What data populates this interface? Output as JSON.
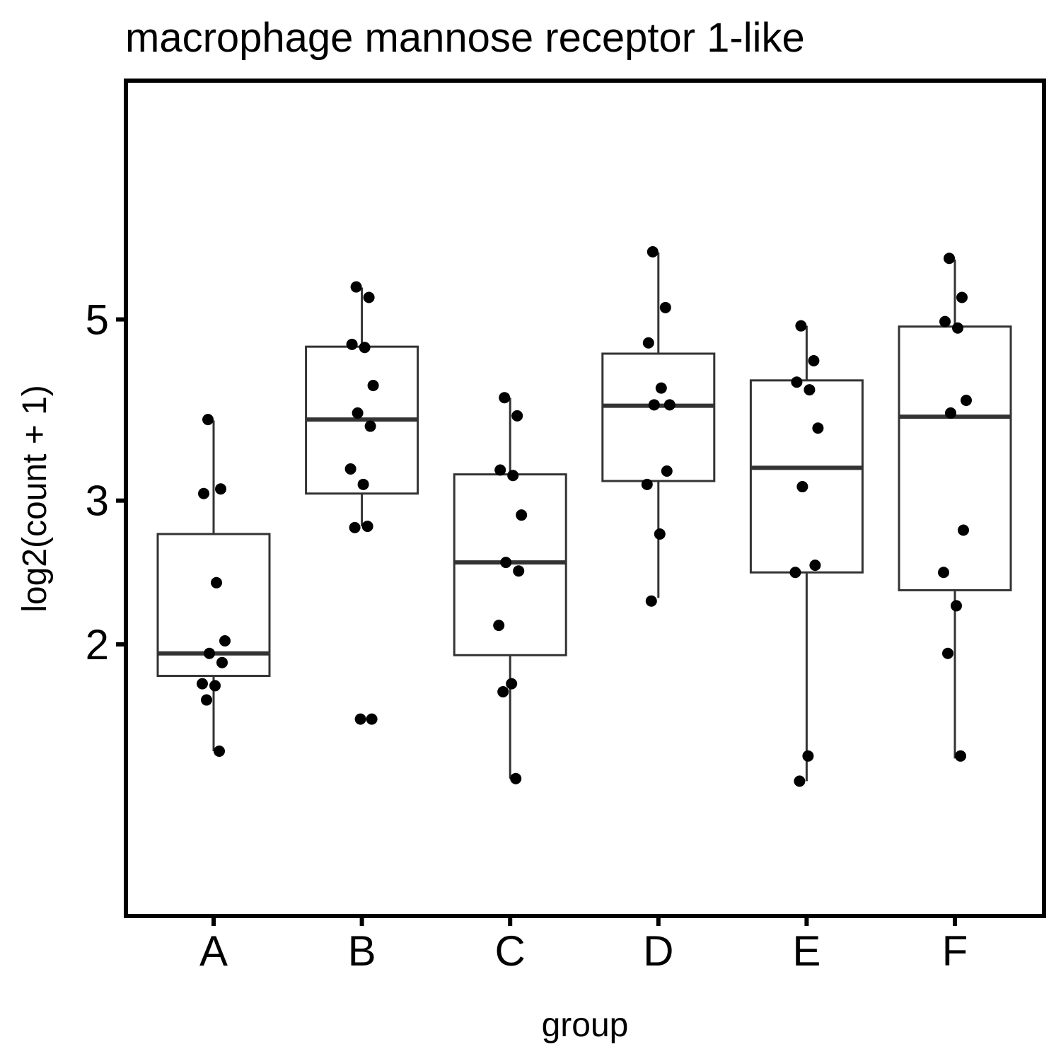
{
  "chart_data": {
    "type": "box",
    "title": "macrophage mannose receptor 1-like",
    "xlabel": "group",
    "ylabel": "log2(count + 1)",
    "y_scale": "log",
    "ylim": [
      1.27,
      6.4
    ],
    "y_ticks": [
      2,
      3,
      5
    ],
    "y_tick_labels": [
      "2",
      "3",
      "5"
    ],
    "categories": [
      "A",
      "B",
      "C",
      "D",
      "E",
      "F"
    ],
    "grid": false,
    "legend": "none",
    "colors": {
      "box_stroke": "#333333",
      "point": "#000000",
      "axis": "#000000"
    },
    "boxes": [
      {
        "group": "A",
        "whisker_low": 1.48,
        "q1": 1.83,
        "median": 1.95,
        "q3": 2.73,
        "whisker_high": 3.76
      },
      {
        "group": "B",
        "whisker_low": 2.79,
        "q1": 3.06,
        "median": 3.77,
        "q3": 4.63,
        "whisker_high": 5.47
      },
      {
        "group": "C",
        "whisker_low": 1.37,
        "q1": 1.94,
        "median": 2.52,
        "q3": 3.23,
        "whisker_high": 4.01
      },
      {
        "group": "D",
        "whisker_low": 2.28,
        "q1": 3.17,
        "median": 3.92,
        "q3": 4.54,
        "whisker_high": 6.04
      },
      {
        "group": "E",
        "whisker_low": 1.36,
        "q1": 2.45,
        "median": 3.29,
        "q3": 4.21,
        "whisker_high": 4.91
      },
      {
        "group": "F",
        "whisker_low": 1.45,
        "q1": 2.33,
        "median": 3.8,
        "q3": 4.9,
        "whisker_high": 5.92
      }
    ],
    "points": [
      {
        "group": "A",
        "y": [
          3.77,
          3.1,
          3.06,
          2.38,
          2.02,
          1.95,
          1.9,
          1.79,
          1.78,
          1.71,
          1.48
        ]
      },
      {
        "group": "B",
        "y": [
          5.48,
          5.32,
          4.66,
          4.62,
          4.15,
          3.84,
          3.7,
          3.28,
          3.14,
          2.78,
          2.79,
          1.62,
          1.62
        ]
      },
      {
        "group": "C",
        "y": [
          4.01,
          3.81,
          3.27,
          3.22,
          2.88,
          2.52,
          2.46,
          2.11,
          1.79,
          1.75,
          1.37
        ]
      },
      {
        "group": "D",
        "y": [
          6.05,
          5.17,
          4.68,
          4.12,
          3.93,
          3.93,
          3.26,
          3.14,
          2.73,
          2.26
        ]
      },
      {
        "group": "E",
        "y": [
          4.91,
          4.45,
          4.19,
          4.1,
          3.68,
          3.12,
          2.5,
          2.45,
          1.46,
          1.36
        ]
      },
      {
        "group": "F",
        "y": [
          5.94,
          5.32,
          4.97,
          4.88,
          3.98,
          3.84,
          2.76,
          2.45,
          2.23,
          1.95,
          1.46
        ]
      }
    ]
  }
}
